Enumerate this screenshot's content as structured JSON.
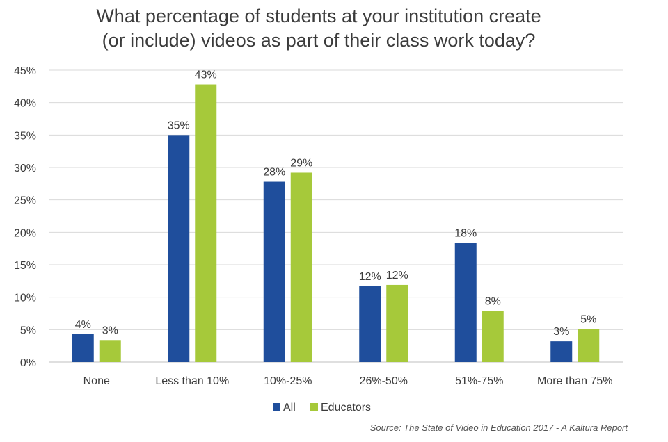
{
  "chart_data": {
    "type": "bar",
    "title": [
      "What percentage of students at your institution create",
      "(or include) videos as part of their class work today?"
    ],
    "categories": [
      "None",
      "Less than 10%",
      "10%-25%",
      "26%-50%",
      "51%-75%",
      "More than 75%"
    ],
    "series": [
      {
        "name": "All",
        "color": "#1f4e9c",
        "values": [
          4.3,
          35,
          27.8,
          11.7,
          18.4,
          3.2
        ],
        "labels": [
          "4%",
          "35%",
          "28%",
          "12%",
          "18%",
          "3%"
        ]
      },
      {
        "name": "Educators",
        "color": "#a6c93a",
        "values": [
          3.4,
          42.8,
          29.2,
          11.9,
          7.9,
          5.1
        ],
        "labels": [
          "3%",
          "43%",
          "29%",
          "12%",
          "8%",
          "5%"
        ]
      }
    ],
    "ylim": [
      0,
      45
    ],
    "yticks": [
      0,
      5,
      10,
      15,
      20,
      25,
      30,
      35,
      40,
      45
    ],
    "ytick_labels": [
      "0%",
      "5%",
      "10%",
      "15%",
      "20%",
      "25%",
      "30%",
      "35%",
      "40%",
      "45%"
    ],
    "xlabel": "",
    "ylabel": "",
    "grid": true,
    "legend": "bottom-center",
    "source": "Source: The State of Video in Education 2017 - A Kaltura Report"
  }
}
